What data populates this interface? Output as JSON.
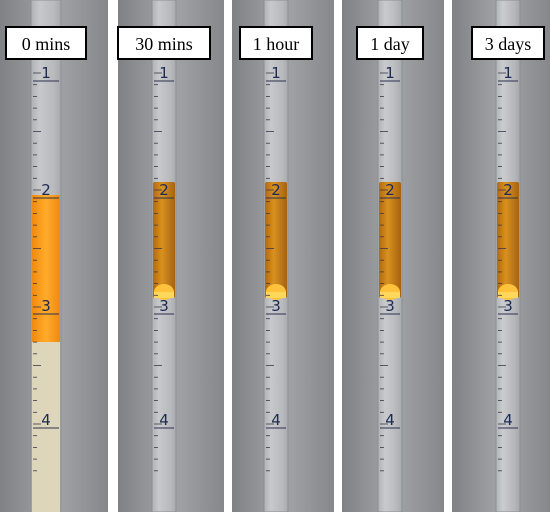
{
  "panels": [
    {
      "label": "0 mins",
      "graduations": [
        1,
        2,
        3,
        4
      ]
    },
    {
      "label": "30 mins",
      "graduations": [
        1,
        2,
        3,
        4
      ]
    },
    {
      "label": "1 hour",
      "graduations": [
        1,
        2,
        3,
        4
      ]
    },
    {
      "label": "1 day",
      "graduations": [
        1,
        2,
        3,
        4
      ]
    },
    {
      "label": "3 days",
      "graduations": [
        1,
        2,
        3,
        4
      ]
    }
  ]
}
